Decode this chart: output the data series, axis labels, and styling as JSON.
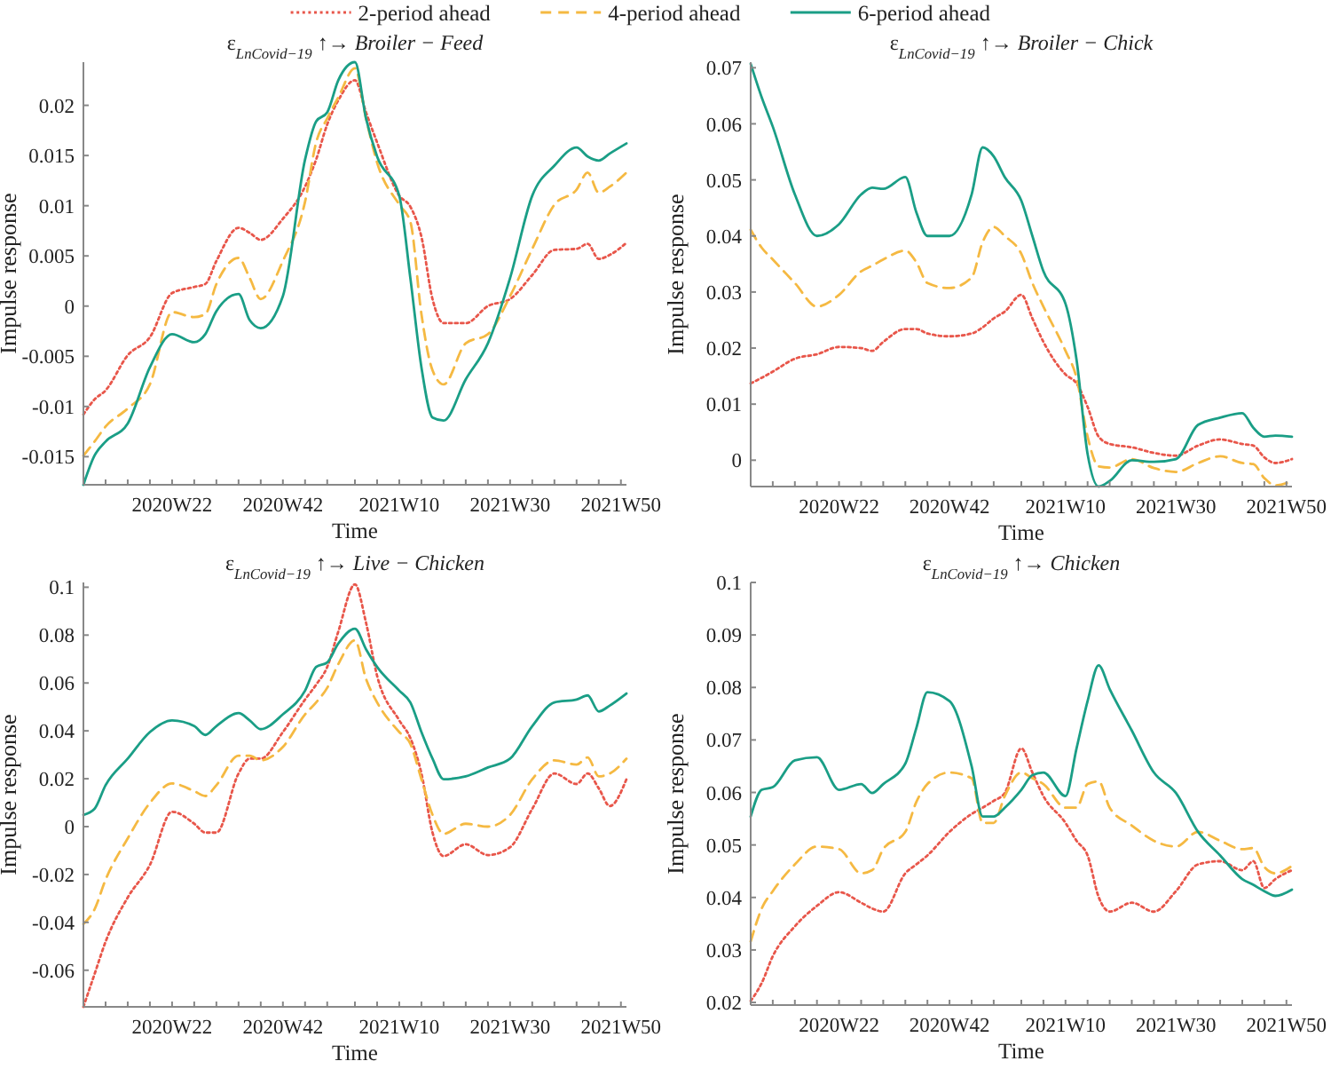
{
  "chart_data": [
    {
      "type": "line",
      "title": "ε$_{LnCovid−19}$ ↑→ Broiler − Feed",
      "xlabel": "Time",
      "ylabel": "Impulse response",
      "legend": "top",
      "grid": false,
      "x": [
        "2020-02-03",
        "2020-02-17",
        "2020-03-02",
        "2020-03-30",
        "2020-04-27",
        "2020-05-25",
        "2020-06-22",
        "2020-07-06",
        "2020-07-20",
        "2020-08-17",
        "2020-08-31",
        "2020-09-14",
        "2020-10-12",
        "2020-11-09",
        "2020-11-23",
        "2020-12-07",
        "2020-12-21",
        "2021-01-11",
        "2021-01-25",
        "2021-02-08",
        "2021-03-08",
        "2021-03-22",
        "2021-04-05",
        "2021-04-19",
        "2021-05-03",
        "2021-05-31",
        "2021-06-28",
        "2021-07-26",
        "2021-08-23",
        "2021-09-20",
        "2021-10-18",
        "2021-11-01",
        "2021-11-15",
        "2021-11-29",
        "2021-12-20"
      ],
      "xlim": [
        "2020-02-03",
        "2021-12-20"
      ],
      "xticks": [
        {
          "value": "2020-03-02",
          "label": null
        },
        {
          "value": "2020-03-30",
          "label": null
        },
        {
          "value": "2020-04-27",
          "label": null
        },
        {
          "value": "2020-05-25",
          "label": "2020W22"
        },
        {
          "value": "2020-06-22",
          "label": null
        },
        {
          "value": "2020-07-20",
          "label": null
        },
        {
          "value": "2020-08-17",
          "label": null
        },
        {
          "value": "2020-09-14",
          "label": null
        },
        {
          "value": "2020-10-12",
          "label": "2020W42"
        },
        {
          "value": "2020-11-09",
          "label": null
        },
        {
          "value": "2020-12-07",
          "label": null
        },
        {
          "value": "2021-01-11",
          "label": null
        },
        {
          "value": "2021-02-08",
          "label": null
        },
        {
          "value": "2021-03-08",
          "label": "2021W10"
        },
        {
          "value": "2021-04-05",
          "label": null
        },
        {
          "value": "2021-05-03",
          "label": null
        },
        {
          "value": "2021-05-31",
          "label": null
        },
        {
          "value": "2021-06-28",
          "label": null
        },
        {
          "value": "2021-07-26",
          "label": "2021W30"
        },
        {
          "value": "2021-08-23",
          "label": null
        },
        {
          "value": "2021-09-20",
          "label": null
        },
        {
          "value": "2021-10-18",
          "label": null
        },
        {
          "value": "2021-11-15",
          "label": null
        },
        {
          "value": "2021-12-13",
          "label": "2021W50"
        }
      ],
      "ylim": [
        -0.0178,
        0.0243
      ],
      "yticks": [
        -0.015,
        -0.01,
        -0.005,
        0,
        0.005,
        0.01,
        0.015,
        0.02
      ],
      "series": [
        {
          "name": "2-period ahead",
          "color": "#e8564a",
          "line_style": "dotted",
          "values": [
            -0.0108,
            -0.0093,
            -0.0084,
            -0.0049,
            -0.0031,
            0.0013,
            0.0019,
            0.0022,
            0.0045,
            0.0078,
            0.0073,
            0.0066,
            0.0087,
            0.0119,
            0.0146,
            0.0181,
            0.0205,
            0.0225,
            0.0193,
            0.0163,
            0.011,
            0.0099,
            0.0069,
            0.0007,
            -0.0017,
            -0.0017,
            0,
            0.0007,
            0.0031,
            0.0056,
            0.0057,
            0.0062,
            0.0047,
            0.0051,
            0.0063
          ]
        },
        {
          "name": "4-period ahead",
          "color": "#f5b942",
          "line_style": "dashed",
          "values": [
            -0.0149,
            -0.0135,
            -0.012,
            -0.0102,
            -0.0078,
            -0.0006,
            -0.0011,
            -0.0008,
            0.0022,
            0.0048,
            0.0028,
            0.0007,
            0.0045,
            0.0104,
            0.0163,
            0.0187,
            0.0208,
            0.0237,
            0.0187,
            0.0143,
            0.0101,
            0.0084,
            -0.0008,
            -0.0064,
            -0.0078,
            -0.0037,
            -0.0028,
            0.001,
            0.0057,
            0.0101,
            0.0116,
            0.0133,
            0.0113,
            0.0119,
            0.0133
          ]
        },
        {
          "name": "6-period ahead",
          "color": "#1a9e86",
          "line_style": "solid",
          "values": [
            -0.0178,
            -0.0149,
            -0.0135,
            -0.0117,
            -0.0061,
            -0.0028,
            -0.0036,
            -0.0028,
            -0.0005,
            0.0012,
            -0.0014,
            -0.0022,
            0.001,
            0.0146,
            0.0184,
            0.0193,
            0.0225,
            0.0243,
            0.0187,
            0.0149,
            0.011,
            0.0028,
            -0.0061,
            -0.0111,
            -0.0114,
            -0.0073,
            -0.0037,
            0.0028,
            0.011,
            0.014,
            0.0158,
            0.0149,
            0.0145,
            0.0152,
            0.0162
          ]
        }
      ]
    },
    {
      "type": "line",
      "title": "ε$_{LnCovid−19}$ ↑→ Broiler − Chick",
      "xlabel": "Time",
      "ylabel": "Impulse response",
      "grid": false,
      "x": [
        "2020-02-03",
        "2020-02-17",
        "2020-03-02",
        "2020-03-30",
        "2020-04-27",
        "2020-05-25",
        "2020-06-22",
        "2020-07-06",
        "2020-07-20",
        "2020-08-17",
        "2020-08-31",
        "2020-09-14",
        "2020-10-12",
        "2020-11-09",
        "2020-11-23",
        "2020-12-07",
        "2020-12-21",
        "2021-01-11",
        "2021-01-25",
        "2021-02-08",
        "2021-03-08",
        "2021-03-22",
        "2021-04-05",
        "2021-04-19",
        "2021-05-03",
        "2021-05-31",
        "2021-06-28",
        "2021-07-26",
        "2021-08-23",
        "2021-09-20",
        "2021-10-18",
        "2021-11-01",
        "2021-11-15",
        "2021-11-29",
        "2021-12-20"
      ],
      "xlim": [
        "2020-02-03",
        "2021-12-20"
      ],
      "xticks": [
        {
          "value": "2020-03-02",
          "label": null
        },
        {
          "value": "2020-03-30",
          "label": null
        },
        {
          "value": "2020-04-27",
          "label": null
        },
        {
          "value": "2020-05-25",
          "label": "2020W22"
        },
        {
          "value": "2020-06-22",
          "label": null
        },
        {
          "value": "2020-07-20",
          "label": null
        },
        {
          "value": "2020-08-17",
          "label": null
        },
        {
          "value": "2020-09-14",
          "label": null
        },
        {
          "value": "2020-10-12",
          "label": "2020W42"
        },
        {
          "value": "2020-11-09",
          "label": null
        },
        {
          "value": "2020-12-07",
          "label": null
        },
        {
          "value": "2021-01-11",
          "label": null
        },
        {
          "value": "2021-02-08",
          "label": null
        },
        {
          "value": "2021-03-08",
          "label": "2021W10"
        },
        {
          "value": "2021-04-05",
          "label": null
        },
        {
          "value": "2021-05-03",
          "label": null
        },
        {
          "value": "2021-05-31",
          "label": null
        },
        {
          "value": "2021-06-28",
          "label": null
        },
        {
          "value": "2021-07-26",
          "label": "2021W30"
        },
        {
          "value": "2021-08-23",
          "label": null
        },
        {
          "value": "2021-09-20",
          "label": null
        },
        {
          "value": "2021-10-18",
          "label": null
        },
        {
          "value": "2021-11-15",
          "label": null
        },
        {
          "value": "2021-12-13",
          "label": "2021W50"
        }
      ],
      "ylim": [
        -0.0047,
        0.071
      ],
      "yticks": [
        0,
        0.01,
        0.02,
        0.03,
        0.04,
        0.05,
        0.06,
        0.07
      ],
      "series": [
        {
          "color": "#e8564a",
          "line_style": "dotted",
          "values": [
            0.0137,
            0.0147,
            0.0158,
            0.0181,
            0.0189,
            0.0202,
            0.02,
            0.0195,
            0.0211,
            0.0234,
            0.0234,
            0.0226,
            0.0221,
            0.0226,
            0.0237,
            0.0253,
            0.0265,
            0.0295,
            0.0253,
            0.0211,
            0.0153,
            0.0137,
            0.0095,
            0.0042,
            0.0029,
            0.0023,
            0.0013,
            0.0008,
            0.0026,
            0.0037,
            0.0029,
            0.0026,
            0.0005,
            -0.0005,
            0.0002
          ]
        },
        {
          "color": "#f5b942",
          "line_style": "dashed",
          "values": [
            0.0411,
            0.0379,
            0.0358,
            0.0316,
            0.0274,
            0.0295,
            0.0337,
            0.0347,
            0.0358,
            0.0374,
            0.0353,
            0.0316,
            0.0307,
            0.0326,
            0.0389,
            0.0416,
            0.04,
            0.0368,
            0.0316,
            0.0274,
            0.0195,
            0.0147,
            0.0042,
            -0.0011,
            -0.0013,
            0.0002,
            -0.0014,
            -0.0021,
            -0.0005,
            0.0007,
            -0.0005,
            -0.0007,
            -0.0032,
            -0.0045,
            -0.0037
          ]
        },
        {
          "color": "#1a9e86",
          "line_style": "solid",
          "values": [
            0.0707,
            0.0647,
            0.0595,
            0.0474,
            0.04,
            0.0421,
            0.0474,
            0.0486,
            0.0484,
            0.0505,
            0.0442,
            0.04,
            0.04,
            0.0474,
            0.0558,
            0.0542,
            0.0505,
            0.0463,
            0.04,
            0.0337,
            0.0279,
            0.0179,
            0.0011,
            -0.0047,
            -0.0037,
            0,
            -0.0003,
            0.0002,
            0.0063,
            0.0076,
            0.0084,
            0.0058,
            0.0042,
            0.0044,
            0.0042
          ]
        }
      ]
    },
    {
      "type": "line",
      "title": "ε$_{LnCovid−19}$ ↑→ Live − Chicken",
      "xlabel": "Time",
      "ylabel": "Impulse response",
      "grid": false,
      "x": [
        "2020-02-03",
        "2020-02-17",
        "2020-03-02",
        "2020-03-30",
        "2020-04-27",
        "2020-05-25",
        "2020-06-22",
        "2020-07-06",
        "2020-07-20",
        "2020-08-17",
        "2020-08-31",
        "2020-09-14",
        "2020-10-12",
        "2020-11-09",
        "2020-11-23",
        "2020-12-07",
        "2020-12-21",
        "2021-01-11",
        "2021-01-25",
        "2021-02-08",
        "2021-03-08",
        "2021-03-22",
        "2021-04-05",
        "2021-04-19",
        "2021-05-03",
        "2021-05-31",
        "2021-06-28",
        "2021-07-26",
        "2021-08-23",
        "2021-09-20",
        "2021-10-18",
        "2021-11-01",
        "2021-11-15",
        "2021-11-29",
        "2021-12-20"
      ],
      "xlim": [
        "2020-02-03",
        "2021-12-20"
      ],
      "xticks": [
        {
          "value": "2020-03-02",
          "label": null
        },
        {
          "value": "2020-03-30",
          "label": null
        },
        {
          "value": "2020-04-27",
          "label": null
        },
        {
          "value": "2020-05-25",
          "label": "2020W22"
        },
        {
          "value": "2020-06-22",
          "label": null
        },
        {
          "value": "2020-07-20",
          "label": null
        },
        {
          "value": "2020-08-17",
          "label": null
        },
        {
          "value": "2020-09-14",
          "label": null
        },
        {
          "value": "2020-10-12",
          "label": "2020W42"
        },
        {
          "value": "2020-11-09",
          "label": null
        },
        {
          "value": "2020-12-07",
          "label": null
        },
        {
          "value": "2021-01-11",
          "label": null
        },
        {
          "value": "2021-02-08",
          "label": null
        },
        {
          "value": "2021-03-08",
          "label": "2021W10"
        },
        {
          "value": "2021-04-05",
          "label": null
        },
        {
          "value": "2021-05-03",
          "label": null
        },
        {
          "value": "2021-05-31",
          "label": null
        },
        {
          "value": "2021-06-28",
          "label": null
        },
        {
          "value": "2021-07-26",
          "label": "2021W30"
        },
        {
          "value": "2021-08-23",
          "label": null
        },
        {
          "value": "2021-09-20",
          "label": null
        },
        {
          "value": "2021-10-18",
          "label": null
        },
        {
          "value": "2021-11-15",
          "label": null
        },
        {
          "value": "2021-12-13",
          "label": "2021W50"
        }
      ],
      "ylim": [
        -0.0753,
        0.102
      ],
      "yticks": [
        -0.06,
        -0.04,
        -0.02,
        0,
        0.02,
        0.04,
        0.06,
        0.08,
        0.1
      ],
      "series": [
        {
          "color": "#e8564a",
          "line_style": "dotted",
          "values": [
            -0.0753,
            -0.0617,
            -0.0481,
            -0.0296,
            -0.016,
            0.0062,
            0.0012,
            -0.0025,
            -0.0025,
            0.0222,
            0.0284,
            0.0284,
            0.0395,
            0.0531,
            0.0593,
            0.0667,
            0.0815,
            0.1012,
            0.0852,
            0.063,
            0.0444,
            0.037,
            0.0222,
            -0.0025,
            -0.0123,
            -0.0074,
            -0.0119,
            -0.0086,
            0.0074,
            0.0222,
            0.0178,
            0.0222,
            0.016,
            0.0086,
            0.0198
          ]
        },
        {
          "color": "#f5b942",
          "line_style": "dashed",
          "values": [
            -0.0407,
            -0.0346,
            -0.0222,
            -0.0049,
            0.0099,
            0.018,
            0.0148,
            0.0128,
            0.0173,
            0.0296,
            0.0296,
            0.0277,
            0.0333,
            0.0469,
            0.0519,
            0.058,
            0.0679,
            0.0778,
            0.0617,
            0.0519,
            0.0395,
            0.0346,
            0.0198,
            0.0049,
            -0.003,
            0.0012,
            0,
            0.0049,
            0.0198,
            0.0277,
            0.0259,
            0.0289,
            0.021,
            0.0222,
            0.0284
          ]
        },
        {
          "color": "#1a9e86",
          "line_style": "solid",
          "values": [
            0.0049,
            0.0074,
            0.0173,
            0.0284,
            0.0395,
            0.0444,
            0.042,
            0.0383,
            0.042,
            0.0474,
            0.0444,
            0.0407,
            0.0469,
            0.0568,
            0.0667,
            0.0686,
            0.0765,
            0.0827,
            0.0741,
            0.0667,
            0.0568,
            0.0519,
            0.0395,
            0.0284,
            0.0198,
            0.021,
            0.0247,
            0.0284,
            0.042,
            0.0519,
            0.0531,
            0.0548,
            0.0481,
            0.0506,
            0.0556
          ]
        }
      ]
    },
    {
      "type": "line",
      "title": "ε$_{LnCovid−19}$ ↑→ Chicken",
      "xlabel": "Time",
      "ylabel": "Impulse response",
      "grid": false,
      "x": [
        "2020-02-03",
        "2020-02-17",
        "2020-03-02",
        "2020-03-30",
        "2020-04-27",
        "2020-05-25",
        "2020-06-22",
        "2020-07-06",
        "2020-07-20",
        "2020-08-17",
        "2020-08-31",
        "2020-09-14",
        "2020-10-12",
        "2020-11-09",
        "2020-11-23",
        "2020-12-07",
        "2020-12-21",
        "2021-01-11",
        "2021-01-25",
        "2021-02-08",
        "2021-03-08",
        "2021-03-22",
        "2021-04-05",
        "2021-04-19",
        "2021-05-03",
        "2021-05-31",
        "2021-06-28",
        "2021-07-26",
        "2021-08-23",
        "2021-09-20",
        "2021-10-18",
        "2021-11-01",
        "2021-11-15",
        "2021-11-29",
        "2021-12-20"
      ],
      "xlim": [
        "2020-02-03",
        "2021-12-20"
      ],
      "xticks": [
        {
          "value": "2020-03-02",
          "label": null
        },
        {
          "value": "2020-03-30",
          "label": null
        },
        {
          "value": "2020-04-27",
          "label": null
        },
        {
          "value": "2020-05-25",
          "label": "2020W22"
        },
        {
          "value": "2020-06-22",
          "label": null
        },
        {
          "value": "2020-07-20",
          "label": null
        },
        {
          "value": "2020-08-17",
          "label": null
        },
        {
          "value": "2020-09-14",
          "label": null
        },
        {
          "value": "2020-10-12",
          "label": "2020W42"
        },
        {
          "value": "2020-11-09",
          "label": null
        },
        {
          "value": "2020-12-07",
          "label": null
        },
        {
          "value": "2021-01-11",
          "label": null
        },
        {
          "value": "2021-02-08",
          "label": null
        },
        {
          "value": "2021-03-08",
          "label": "2021W10"
        },
        {
          "value": "2021-04-05",
          "label": null
        },
        {
          "value": "2021-05-03",
          "label": null
        },
        {
          "value": "2021-05-31",
          "label": null
        },
        {
          "value": "2021-06-28",
          "label": null
        },
        {
          "value": "2021-07-26",
          "label": "2021W30"
        },
        {
          "value": "2021-08-23",
          "label": null
        },
        {
          "value": "2021-09-20",
          "label": null
        },
        {
          "value": "2021-10-18",
          "label": null
        },
        {
          "value": "2021-11-15",
          "label": null
        },
        {
          "value": "2021-12-13",
          "label": "2021W50"
        }
      ],
      "ylim": [
        0.0195,
        0.1
      ],
      "yticks": [
        0.02,
        0.03,
        0.04,
        0.05,
        0.06,
        0.07,
        0.08,
        0.09,
        0.1
      ],
      "series": [
        {
          "color": "#e8564a",
          "line_style": "dotted",
          "values": [
            0.0203,
            0.0237,
            0.0288,
            0.0345,
            0.0384,
            0.041,
            0.039,
            0.0379,
            0.0373,
            0.0446,
            0.0463,
            0.048,
            0.0525,
            0.0559,
            0.0571,
            0.0584,
            0.0599,
            0.0684,
            0.0638,
            0.0593,
            0.0542,
            0.0508,
            0.048,
            0.0401,
            0.0373,
            0.039,
            0.0373,
            0.0412,
            0.0463,
            0.0469,
            0.0452,
            0.0469,
            0.0418,
            0.0435,
            0.0452
          ]
        },
        {
          "color": "#f5b942",
          "line_style": "dashed",
          "values": [
            0.0316,
            0.0379,
            0.0412,
            0.0463,
            0.0497,
            0.0492,
            0.0446,
            0.0452,
            0.0492,
            0.0525,
            0.0582,
            0.0616,
            0.0638,
            0.0627,
            0.0542,
            0.0542,
            0.0593,
            0.0638,
            0.0627,
            0.0616,
            0.0571,
            0.0571,
            0.0616,
            0.0621,
            0.0571,
            0.0537,
            0.0508,
            0.0497,
            0.0525,
            0.0508,
            0.0492,
            0.0494,
            0.0458,
            0.0446,
            0.046
          ]
        },
        {
          "color": "#1a9e86",
          "line_style": "solid",
          "values": [
            0.0554,
            0.0605,
            0.061,
            0.0661,
            0.0667,
            0.0605,
            0.0616,
            0.0599,
            0.0616,
            0.0655,
            0.0723,
            0.0791,
            0.0774,
            0.065,
            0.0554,
            0.0554,
            0.0571,
            0.0605,
            0.0633,
            0.0638,
            0.0593,
            0.0684,
            0.0774,
            0.0842,
            0.0797,
            0.0718,
            0.0638,
            0.0599,
            0.0525,
            0.048,
            0.0435,
            0.0424,
            0.0412,
            0.0403,
            0.0415
          ]
        }
      ]
    }
  ]
}
